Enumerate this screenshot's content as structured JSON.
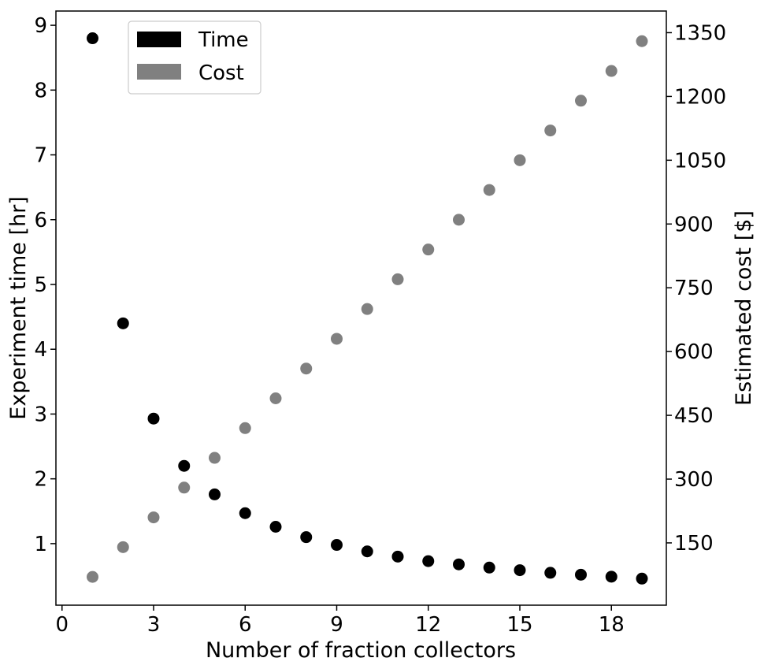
{
  "chart_data": {
    "type": "scatter",
    "x_axis": {
      "label": "Number of fraction collectors",
      "range": [
        -0.2,
        19.8
      ],
      "ticks": [
        0,
        3,
        6,
        9,
        12,
        15,
        18
      ],
      "tick_labels": [
        "0",
        "3",
        "6",
        "9",
        "12",
        "15",
        "18"
      ]
    },
    "y_axis_left": {
      "label": "Experiment time [hr]",
      "range": [
        0.05,
        9.22
      ],
      "ticks": [
        1,
        2,
        3,
        4,
        5,
        6,
        7,
        8,
        9
      ],
      "tick_labels": [
        "1",
        "2",
        "3",
        "4",
        "5",
        "6",
        "7",
        "8",
        "9"
      ]
    },
    "y_axis_right": {
      "label": "Estimated cost [$]",
      "range": [
        3.5,
        1400.9
      ],
      "ticks": [
        150,
        300,
        450,
        600,
        750,
        900,
        1050,
        1200,
        1350
      ],
      "tick_labels": [
        "150",
        "300",
        "450",
        "600",
        "750",
        "900",
        "1050",
        "1200",
        "1350"
      ]
    },
    "series": [
      {
        "name": "Time",
        "axis": "left",
        "color": "#000000",
        "x": [
          1,
          2,
          3,
          4,
          5,
          6,
          7,
          8,
          9,
          10,
          11,
          12,
          13,
          14,
          15,
          16,
          17,
          18,
          19
        ],
        "y": [
          8.8,
          4.4,
          2.93,
          2.2,
          1.76,
          1.47,
          1.26,
          1.1,
          0.98,
          0.88,
          0.8,
          0.73,
          0.68,
          0.63,
          0.59,
          0.55,
          0.52,
          0.49,
          0.46
        ]
      },
      {
        "name": "Cost",
        "axis": "right",
        "color": "#808080",
        "x": [
          1,
          2,
          3,
          4,
          5,
          6,
          7,
          8,
          9,
          10,
          11,
          12,
          13,
          14,
          15,
          16,
          17,
          18,
          19
        ],
        "y": [
          70,
          140,
          210,
          280,
          350,
          420,
          490,
          560,
          630,
          700,
          770,
          840,
          910,
          980,
          1050,
          1120,
          1190,
          1260,
          1330
        ]
      }
    ],
    "legend": {
      "position": "top-left",
      "entries": [
        {
          "label": "Time",
          "color": "#000000"
        },
        {
          "label": "Cost",
          "color": "#808080"
        }
      ]
    },
    "grid": false
  }
}
